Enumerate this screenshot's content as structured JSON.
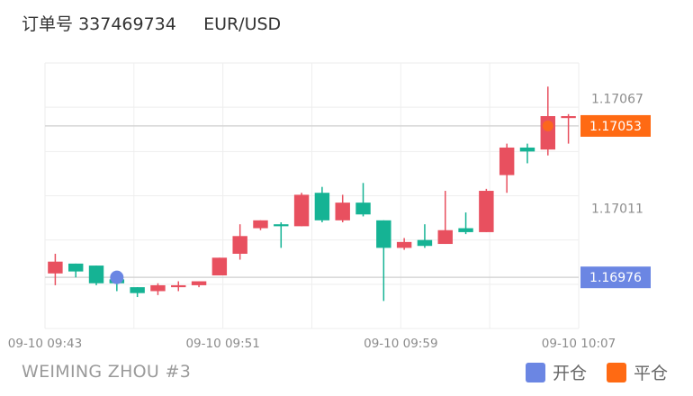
{
  "header": {
    "order_label": "订单号",
    "order_number": "337469734",
    "symbol": "EUR/USD"
  },
  "footer": {
    "account": "WEIMING ZHOU #3"
  },
  "legend": {
    "items": [
      {
        "label": "开仓",
        "color": "#6b86e3"
      },
      {
        "label": "平仓",
        "color": "#ff6a13"
      }
    ]
  },
  "colors": {
    "up": "#15b394",
    "down": "#e8505f",
    "grid": "#eeeeee"
  },
  "chart_data": {
    "type": "candlestick",
    "ylim": [
      1.1695,
      1.17085
    ],
    "y_ticks": [
      "1.17067",
      "1.17011"
    ],
    "x_ticks": [
      "09-10 09:43",
      "09-10 09:51",
      "09-10 09:59",
      "09-10 10:07"
    ],
    "grid": true,
    "candles": [
      {
        "o": 1.16984,
        "h": 1.16988,
        "l": 1.16972,
        "c": 1.16978,
        "t": "down"
      },
      {
        "o": 1.16983,
        "h": 1.16983,
        "l": 1.16976,
        "c": 1.16979,
        "t": "up"
      },
      {
        "o": 1.16982,
        "h": 1.16982,
        "l": 1.16972,
        "c": 1.16973,
        "t": "up"
      },
      {
        "o": 1.16975,
        "h": 1.16976,
        "l": 1.16969,
        "c": 1.16973,
        "t": "up"
      },
      {
        "o": 1.16971,
        "h": 1.16971,
        "l": 1.16966,
        "c": 1.16968,
        "t": "up"
      },
      {
        "o": 1.16969,
        "h": 1.16973,
        "l": 1.16967,
        "c": 1.16972,
        "t": "down"
      },
      {
        "o": 1.16971,
        "h": 1.16974,
        "l": 1.16969,
        "c": 1.16972,
        "t": "down"
      },
      {
        "o": 1.16972,
        "h": 1.16974,
        "l": 1.16971,
        "c": 1.16974,
        "t": "down"
      },
      {
        "o": 1.16977,
        "h": 1.16986,
        "l": 1.16977,
        "c": 1.16986,
        "t": "down"
      },
      {
        "o": 1.16988,
        "h": 1.17003,
        "l": 1.16985,
        "c": 1.16997,
        "t": "down"
      },
      {
        "o": 1.17001,
        "h": 1.17005,
        "l": 1.17,
        "c": 1.17005,
        "t": "down"
      },
      {
        "o": 1.17003,
        "h": 1.17004,
        "l": 1.16991,
        "c": 1.17002,
        "t": "up"
      },
      {
        "o": 1.17002,
        "h": 1.17019,
        "l": 1.17002,
        "c": 1.17018,
        "t": "down"
      },
      {
        "o": 1.17019,
        "h": 1.17022,
        "l": 1.17004,
        "c": 1.17005,
        "t": "up"
      },
      {
        "o": 1.17005,
        "h": 1.17018,
        "l": 1.17004,
        "c": 1.17014,
        "t": "down"
      },
      {
        "o": 1.17014,
        "h": 1.17024,
        "l": 1.17007,
        "c": 1.17008,
        "t": "up"
      },
      {
        "o": 1.17005,
        "h": 1.17005,
        "l": 1.16964,
        "c": 1.16991,
        "t": "up"
      },
      {
        "o": 1.16991,
        "h": 1.16996,
        "l": 1.1699,
        "c": 1.16994,
        "t": "down"
      },
      {
        "o": 1.16992,
        "h": 1.17003,
        "l": 1.16991,
        "c": 1.16995,
        "t": "up"
      },
      {
        "o": 1.16993,
        "h": 1.1702,
        "l": 1.16993,
        "c": 1.17,
        "t": "down"
      },
      {
        "o": 1.16999,
        "h": 1.17009,
        "l": 1.16998,
        "c": 1.17001,
        "t": "up"
      },
      {
        "o": 1.16999,
        "h": 1.17021,
        "l": 1.16999,
        "c": 1.1702,
        "t": "down"
      },
      {
        "o": 1.17028,
        "h": 1.17044,
        "l": 1.17019,
        "c": 1.17042,
        "t": "down"
      },
      {
        "o": 1.1704,
        "h": 1.17044,
        "l": 1.17034,
        "c": 1.17042,
        "t": "up"
      },
      {
        "o": 1.17041,
        "h": 1.17073,
        "l": 1.17038,
        "c": 1.17058,
        "t": "down"
      },
      {
        "o": 1.17057,
        "h": 1.17059,
        "l": 1.17044,
        "c": 1.17058,
        "t": "down"
      }
    ],
    "open_marker": {
      "index": 3,
      "value": 1.16976,
      "label": "1.16976"
    },
    "close_marker": {
      "index": 24,
      "value": 1.17053,
      "label": "1.17053"
    }
  }
}
